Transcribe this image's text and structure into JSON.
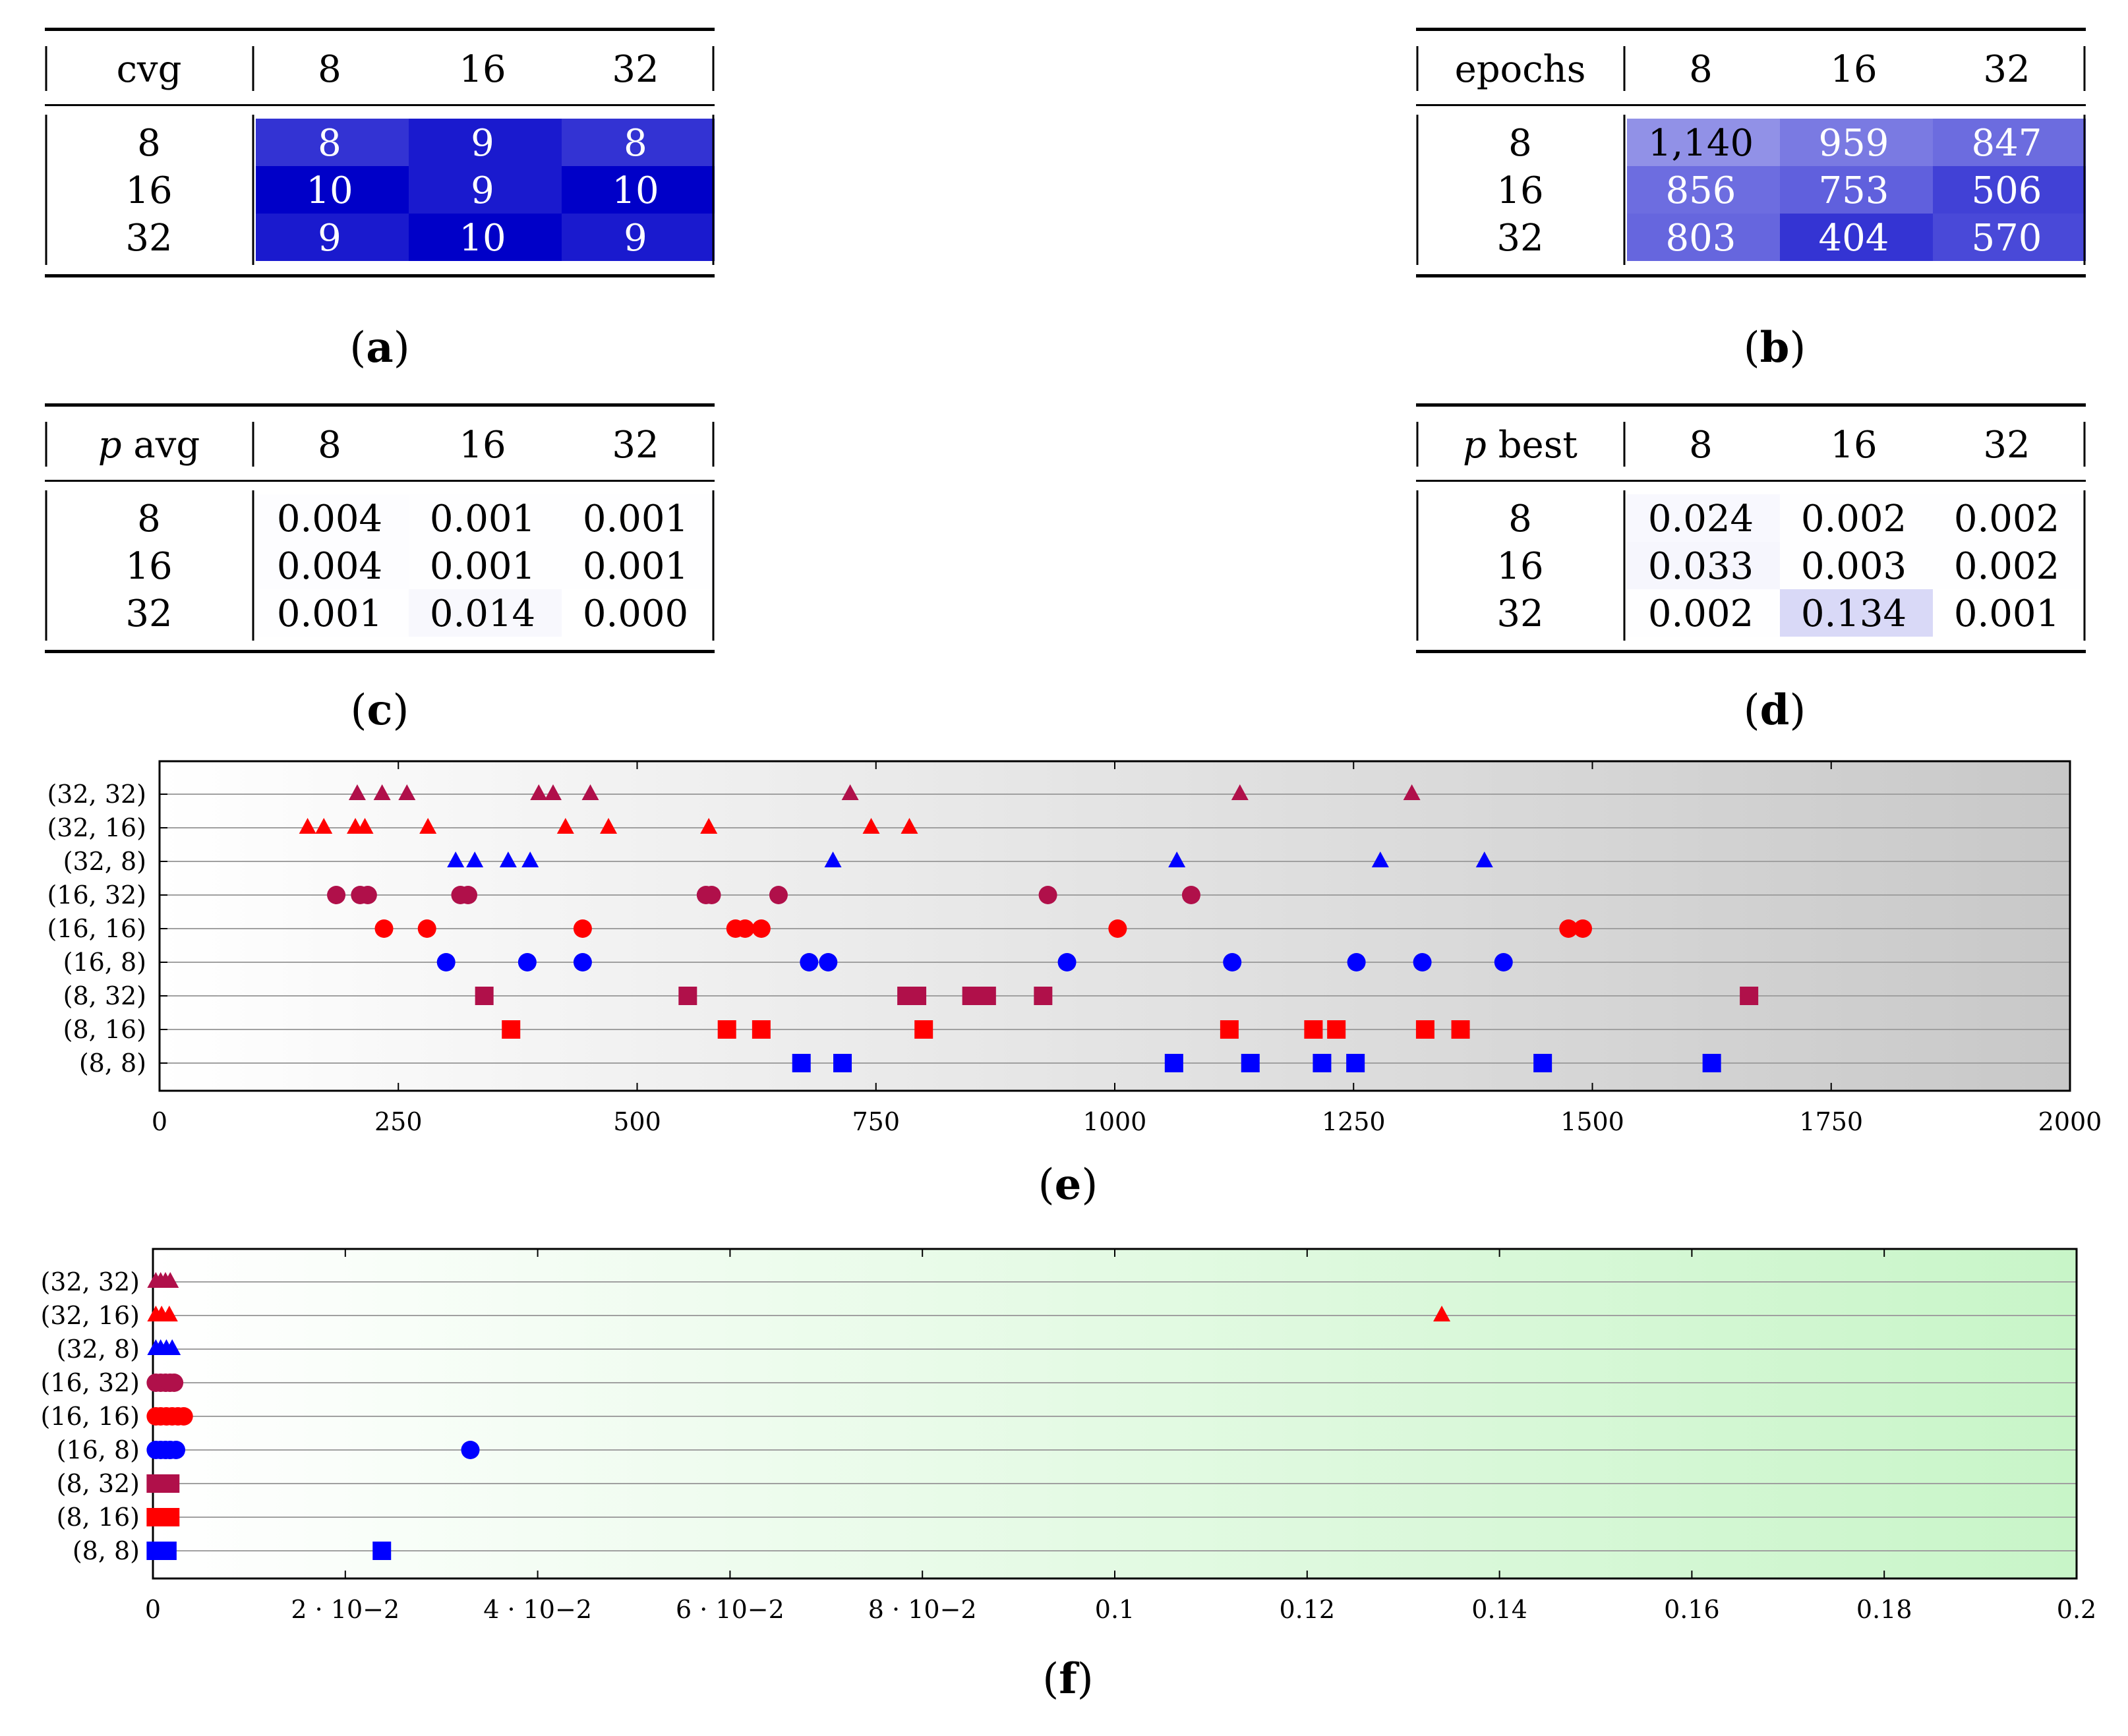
{
  "chart_data": [
    {
      "type": "table",
      "panel": "a",
      "corner_label": "cvg",
      "col_headers": [
        "8",
        "16",
        "32"
      ],
      "row_headers": [
        "8",
        "16",
        "32"
      ],
      "cells": [
        [
          "8",
          "9",
          "8"
        ],
        [
          "10",
          "9",
          "10"
        ],
        [
          "9",
          "10",
          "9"
        ]
      ],
      "values": [
        [
          8,
          9,
          8
        ],
        [
          10,
          9,
          10
        ],
        [
          9,
          10,
          9
        ]
      ],
      "color_range": [
        0,
        10
      ],
      "heat_color": "#0000c8"
    },
    {
      "type": "table",
      "panel": "b",
      "corner_label": "epochs",
      "col_headers": [
        "8",
        "16",
        "32"
      ],
      "row_headers": [
        "8",
        "16",
        "32"
      ],
      "cells": [
        [
          "1,140",
          "959",
          "847"
        ],
        [
          "856",
          "753",
          "506"
        ],
        [
          "803",
          "404",
          "570"
        ]
      ],
      "values": [
        [
          1140,
          959,
          847
        ],
        [
          856,
          753,
          506
        ],
        [
          803,
          404,
          570
        ]
      ],
      "color_range": [
        2000,
        0
      ],
      "heat_color": "#0000c8"
    },
    {
      "type": "table",
      "panel": "c",
      "corner_label_italic": "p",
      "corner_label_rest": " avg",
      "col_headers": [
        "8",
        "16",
        "32"
      ],
      "row_headers": [
        "8",
        "16",
        "32"
      ],
      "cells": [
        [
          "0.004",
          "0.001",
          "0.001"
        ],
        [
          "0.004",
          "0.001",
          "0.001"
        ],
        [
          "0.001",
          "0.014",
          "0.000"
        ]
      ],
      "values": [
        [
          0.004,
          0.001,
          0.001
        ],
        [
          0.004,
          0.001,
          0.001
        ],
        [
          0.001,
          0.014,
          0.0
        ]
      ],
      "color_range": [
        0,
        0.5
      ],
      "heat_color": "#0000c8"
    },
    {
      "type": "table",
      "panel": "d",
      "corner_label_italic": "p",
      "corner_label_rest": " best",
      "col_headers": [
        "8",
        "16",
        "32"
      ],
      "row_headers": [
        "8",
        "16",
        "32"
      ],
      "cells": [
        [
          "0.024",
          "0.002",
          "0.002"
        ],
        [
          "0.033",
          "0.003",
          "0.002"
        ],
        [
          "0.002",
          "0.134",
          "0.001"
        ]
      ],
      "values": [
        [
          0.024,
          0.002,
          0.002
        ],
        [
          0.033,
          0.003,
          0.002
        ],
        [
          0.002,
          0.134,
          0.001
        ]
      ],
      "color_range": [
        0,
        0.9
      ],
      "heat_color": "#0000c8"
    },
    {
      "type": "scatter",
      "panel": "e",
      "xlim": [
        0,
        2000
      ],
      "xticks": [
        0,
        250,
        500,
        750,
        1000,
        1250,
        1500,
        1750,
        2000
      ],
      "xtick_labels": [
        "0",
        "250",
        "500",
        "750",
        "1000",
        "1250",
        "1500",
        "1750",
        "2000"
      ],
      "background": {
        "from": "#ffffff",
        "to": "#c8c8c8"
      },
      "series": [
        {
          "name": "(32, 32)",
          "marker": "triangle",
          "color": "#b0104a",
          "values": [
            207,
            233,
            259,
            397,
            412,
            451,
            723,
            1131,
            1311
          ]
        },
        {
          "name": "(32, 16)",
          "marker": "triangle",
          "color": "#ff0000",
          "values": [
            155,
            172,
            205,
            215,
            281,
            425,
            470,
            575,
            745,
            785
          ]
        },
        {
          "name": "(32, 8)",
          "marker": "triangle",
          "color": "#0000ff",
          "values": [
            310,
            330,
            365,
            388,
            705,
            1065,
            1278,
            1387
          ]
        },
        {
          "name": "(16, 32)",
          "marker": "circle",
          "color": "#b0104a",
          "values": [
            185,
            210,
            218,
            315,
            323,
            572,
            578,
            648,
            930,
            1080
          ]
        },
        {
          "name": "(16, 16)",
          "marker": "circle",
          "color": "#ff0000",
          "values": [
            235,
            280,
            443,
            603,
            613,
            630,
            1003,
            1475,
            1490
          ]
        },
        {
          "name": "(16, 8)",
          "marker": "circle",
          "color": "#0000ff",
          "values": [
            300,
            385,
            443,
            680,
            700,
            950,
            1123,
            1253,
            1322,
            1407
          ]
        },
        {
          "name": "(8, 32)",
          "marker": "square",
          "color": "#b0104a",
          "values": [
            340,
            553,
            782,
            793,
            850,
            866,
            925,
            1664
          ]
        },
        {
          "name": "(8, 16)",
          "marker": "square",
          "color": "#ff0000",
          "values": [
            368,
            594,
            630,
            800,
            1120,
            1208,
            1232,
            1325,
            1362
          ]
        },
        {
          "name": "(8, 8)",
          "marker": "square",
          "color": "#0000ff",
          "values": [
            672,
            715,
            1062,
            1142,
            1217,
            1252,
            1448,
            1625
          ]
        }
      ]
    },
    {
      "type": "scatter",
      "panel": "f",
      "xlim": [
        0,
        0.2
      ],
      "xticks": [
        0,
        0.02,
        0.04,
        0.06,
        0.08,
        0.1,
        0.12,
        0.14,
        0.16,
        0.18,
        0.2
      ],
      "xtick_labels": [
        "0",
        "2 · 10−2",
        "4 · 10−2",
        "6 · 10−2",
        "8 · 10−2",
        "0.1",
        "0.12",
        "0.14",
        "0.16",
        "0.18",
        "0.2"
      ],
      "background": {
        "from": "#ffffff",
        "to": "#c8f5c8"
      },
      "series": [
        {
          "name": "(32, 32)",
          "marker": "triangle",
          "color": "#b0104a",
          "values": [
            0.0003,
            0.0008,
            0.0013,
            0.0018
          ]
        },
        {
          "name": "(32, 16)",
          "marker": "triangle",
          "color": "#ff0000",
          "values": [
            0.0003,
            0.0009,
            0.0017,
            0.134
          ]
        },
        {
          "name": "(32, 8)",
          "marker": "triangle",
          "color": "#0000ff",
          "values": [
            0.0003,
            0.0008,
            0.0014,
            0.002
          ]
        },
        {
          "name": "(16, 32)",
          "marker": "circle",
          "color": "#b0104a",
          "values": [
            0.0003,
            0.0008,
            0.0013,
            0.0018,
            0.0022
          ]
        },
        {
          "name": "(16, 16)",
          "marker": "circle",
          "color": "#ff0000",
          "values": [
            0.0003,
            0.0008,
            0.0014,
            0.002,
            0.0026,
            0.0032
          ]
        },
        {
          "name": "(16, 8)",
          "marker": "circle",
          "color": "#0000ff",
          "values": [
            0.0003,
            0.0008,
            0.0013,
            0.0018,
            0.0024,
            0.033
          ]
        },
        {
          "name": "(8, 32)",
          "marker": "square",
          "color": "#b0104a",
          "values": [
            0.0003,
            0.0008,
            0.0013,
            0.0018
          ]
        },
        {
          "name": "(8, 16)",
          "marker": "square",
          "color": "#ff0000",
          "values": [
            0.0003,
            0.0008,
            0.0013,
            0.0018
          ]
        },
        {
          "name": "(8, 8)",
          "marker": "square",
          "color": "#0000ff",
          "values": [
            0.0003,
            0.0009,
            0.0015,
            0.0238
          ]
        }
      ]
    }
  ],
  "captions": {
    "a": "a",
    "b": "b",
    "c": "c",
    "d": "d",
    "e": "e",
    "f": "f"
  }
}
